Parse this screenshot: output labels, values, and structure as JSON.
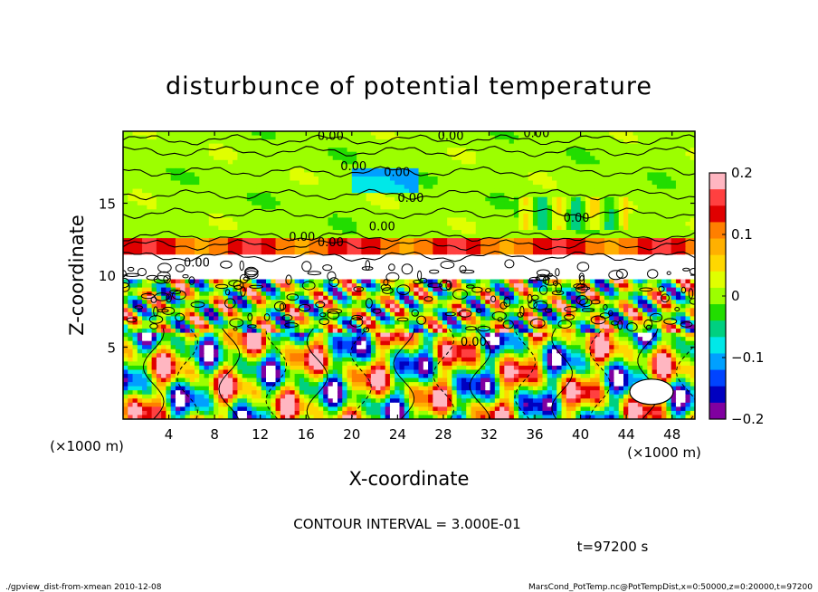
{
  "chart_data": {
    "type": "heatmap",
    "title": "disturbunce of potential temperature",
    "xlabel": "X-coordinate",
    "ylabel": "Z-coordinate",
    "x_unit": "(×1000 m)",
    "y_unit": "(×1000 m)",
    "xlim": [
      0,
      50
    ],
    "ylim": [
      0,
      20
    ],
    "x_ticks": [
      4,
      8,
      12,
      16,
      20,
      24,
      28,
      32,
      36,
      40,
      44,
      48
    ],
    "y_ticks": [
      5,
      10,
      15
    ],
    "colorbar": {
      "range": [
        -0.2,
        0.2
      ],
      "ticks": [
        0.2,
        0.1,
        0,
        -0.1,
        -0.2
      ],
      "tick_labels": [
        "0.2",
        "0.1",
        "0",
        "−0.1",
        "−0.2"
      ],
      "colors": [
        "#ffb6c1",
        "#ff4040",
        "#e00000",
        "#ff7f00",
        "#ffb000",
        "#ffd700",
        "#e0ff00",
        "#9cff00",
        "#22dd00",
        "#00d080",
        "#00e8e8",
        "#00a0ff",
        "#0044ff",
        "#0000c0",
        "#8000a0"
      ]
    },
    "contour_interval_text": "CONTOUR INTERVAL = 3.000E-01",
    "contour_labels": [
      "0.00",
      "0.00",
      "0.00",
      "0.00",
      "0.00",
      "0.00",
      "0.00",
      "0.00",
      "0.00",
      "0.00",
      "0.00",
      "0.00"
    ],
    "time_text": "t=97200 s"
  },
  "footer": {
    "left": "./gpview_dist-from-xmean  2010-12-08",
    "right": "MarsCond_PotTemp.nc@PotTempDist,x=0:50000,z=0:20000,t=97200"
  }
}
